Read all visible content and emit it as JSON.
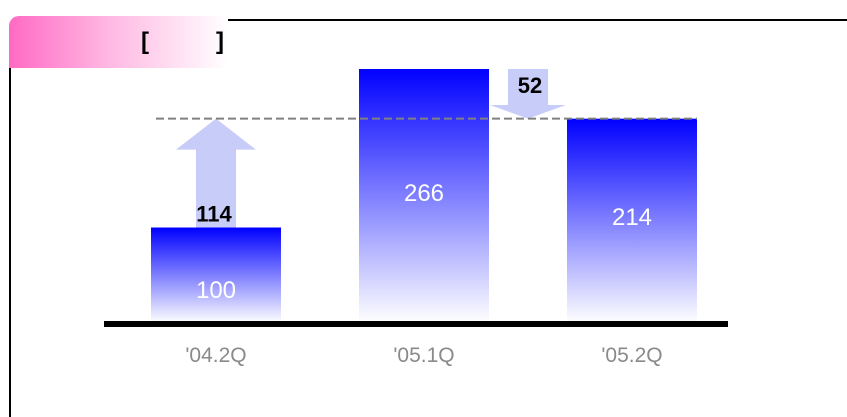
{
  "header": {
    "bracket_open": "[",
    "bracket_close": "]"
  },
  "chart_data": {
    "type": "bar",
    "categories": [
      "'04.2Q",
      "'05.1Q",
      "'05.2Q"
    ],
    "values": [
      100,
      266,
      214
    ],
    "ylim": [
      0,
      266
    ],
    "reference_line": 214,
    "annotations": [
      {
        "label": "114",
        "direction": "up",
        "from_category": "'04.2Q",
        "from_value": 100,
        "to_value": 214
      },
      {
        "label": "52",
        "direction": "down",
        "between": [
          "'05.1Q",
          "'05.2Q"
        ],
        "from_value": 266,
        "to_value": 214
      }
    ],
    "colors": {
      "bar_top": "#0000ff",
      "bar_bottom": "#ffffff",
      "arrow": "#c8ccf8",
      "reference_line": "#808080",
      "baseline": "#000000"
    },
    "grid": false,
    "title": "",
    "xlabel": "",
    "ylabel": ""
  }
}
